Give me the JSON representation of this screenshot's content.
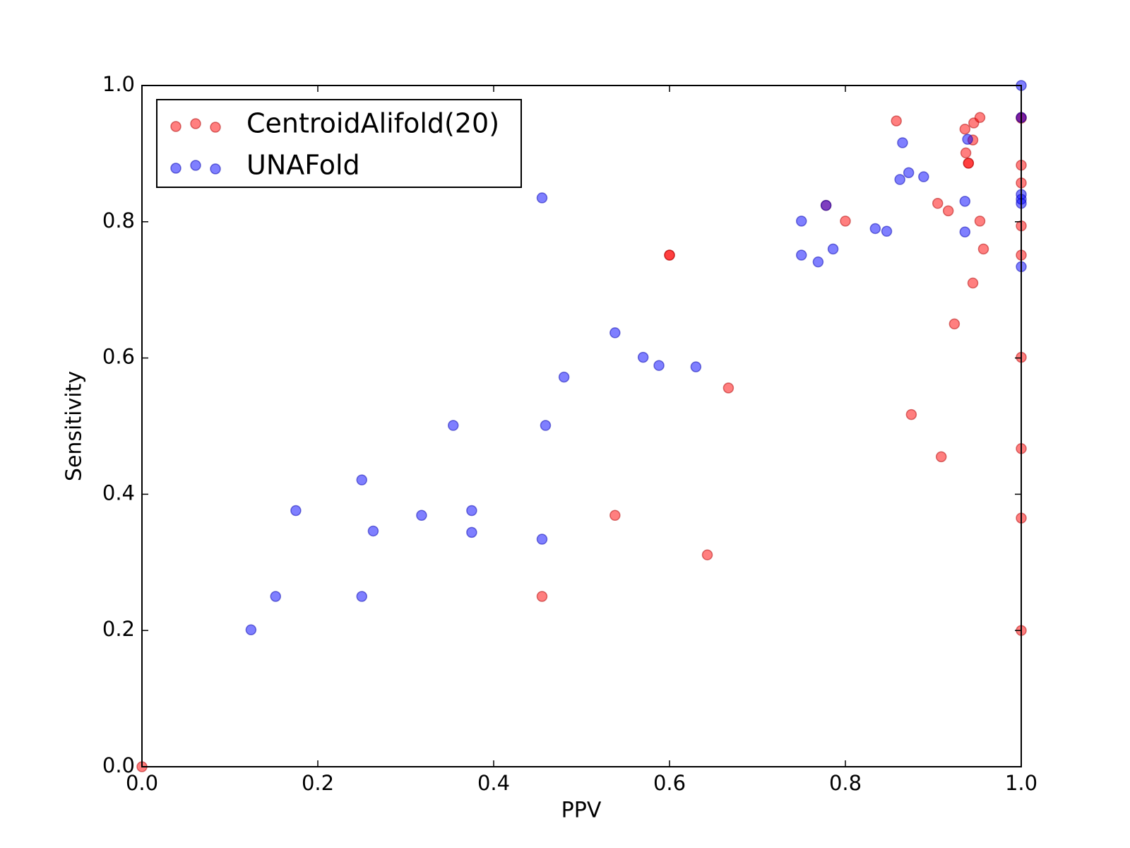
{
  "chart_data": {
    "type": "scatter",
    "xlabel": "PPV",
    "ylabel": "Sensitivity",
    "xlim": [
      0,
      1
    ],
    "ylim": [
      0,
      1
    ],
    "xticks": [
      {
        "value": 0,
        "label": "0.0"
      },
      0.2,
      0.4,
      0.6,
      0.8,
      {
        "value": 1,
        "label": "1.0"
      }
    ],
    "yticks": [
      {
        "value": 0,
        "label": "0.0"
      },
      0.2,
      0.4,
      0.6,
      0.8,
      {
        "value": 1,
        "label": "1.0"
      }
    ],
    "legend": "upper left",
    "alpha": 0.5,
    "series": [
      {
        "name": "CentroidAlifold(20)",
        "color": "#ff0000",
        "x": [
          0.858,
          0.936,
          0.946,
          0.953,
          0.945,
          0.937,
          0.94,
          0.94,
          1.0,
          1.0,
          1.0,
          0.8,
          0.905,
          0.917,
          0.953,
          1.0,
          0.957,
          1.0,
          0.6,
          0.6,
          0.945,
          0.924,
          1.0,
          0.667,
          0.875,
          0.909,
          1.0,
          1.0,
          0.538,
          0.643,
          0.455,
          1.0,
          0.0,
          0.778,
          1.0
        ],
        "values": [
          0.948,
          0.936,
          0.945,
          0.953,
          0.92,
          0.901,
          0.886,
          0.886,
          0.952,
          0.883,
          0.857,
          0.801,
          0.827,
          0.816,
          0.801,
          0.794,
          0.76,
          0.751,
          0.751,
          0.751,
          0.71,
          0.65,
          0.601,
          0.556,
          0.517,
          0.455,
          0.467,
          0.365,
          0.369,
          0.311,
          0.25,
          0.2,
          0.0,
          0.824,
          0.953
        ]
      },
      {
        "name": "UNAFold",
        "color": "#0000ff",
        "x": [
          1.0,
          1.0,
          0.865,
          0.939,
          0.872,
          0.862,
          0.889,
          1.0,
          1.0,
          1.0,
          0.936,
          0.455,
          0.778,
          0.75,
          0.834,
          0.847,
          0.936,
          0.786,
          0.75,
          0.769,
          1.0,
          0.538,
          0.57,
          0.588,
          0.63,
          0.48,
          0.354,
          0.459,
          0.25,
          0.175,
          0.375,
          0.318,
          0.263,
          0.375,
          0.455,
          0.152,
          0.25,
          0.124
        ],
        "values": [
          1.0,
          0.953,
          0.916,
          0.921,
          0.872,
          0.862,
          0.866,
          0.84,
          0.833,
          0.827,
          0.83,
          0.835,
          0.824,
          0.801,
          0.79,
          0.786,
          0.785,
          0.76,
          0.751,
          0.741,
          0.734,
          0.637,
          0.601,
          0.589,
          0.587,
          0.572,
          0.501,
          0.501,
          0.421,
          0.376,
          0.376,
          0.369,
          0.346,
          0.344,
          0.334,
          0.25,
          0.25,
          0.201
        ]
      }
    ]
  }
}
